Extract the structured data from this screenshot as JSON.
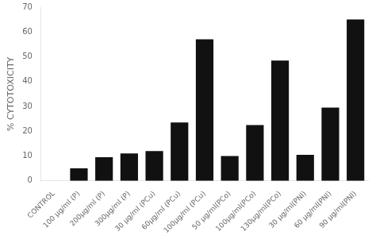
{
  "chart_data": {
    "type": "bar",
    "categories": [
      "CONTROL",
      "100 µg/ml (P)",
      "200µg/ml (P)",
      "300µg/ml (P)",
      "30 µg/ml (PCu)",
      "60µg/ml (PCu)",
      "100µg/ml (PCu)",
      "50 µg/ml(PCo)",
      "100µg/ml(PCo)",
      "130µg/ml(PCo)",
      "30 µg/ml(PNl)",
      "60 µg/ml(PNl)",
      "90 µg/ml(PNl)"
    ],
    "values": [
      0,
      5,
      9.5,
      11,
      12,
      23.5,
      57,
      10,
      22.5,
      48.5,
      10.5,
      29.5,
      65
    ],
    "color": "#111111",
    "ylabel": "% CYTOTOXICITY",
    "ylim": [
      0,
      70
    ],
    "yticks": [
      0,
      10,
      20,
      30,
      40,
      50,
      60,
      70
    ],
    "grid": false
  }
}
